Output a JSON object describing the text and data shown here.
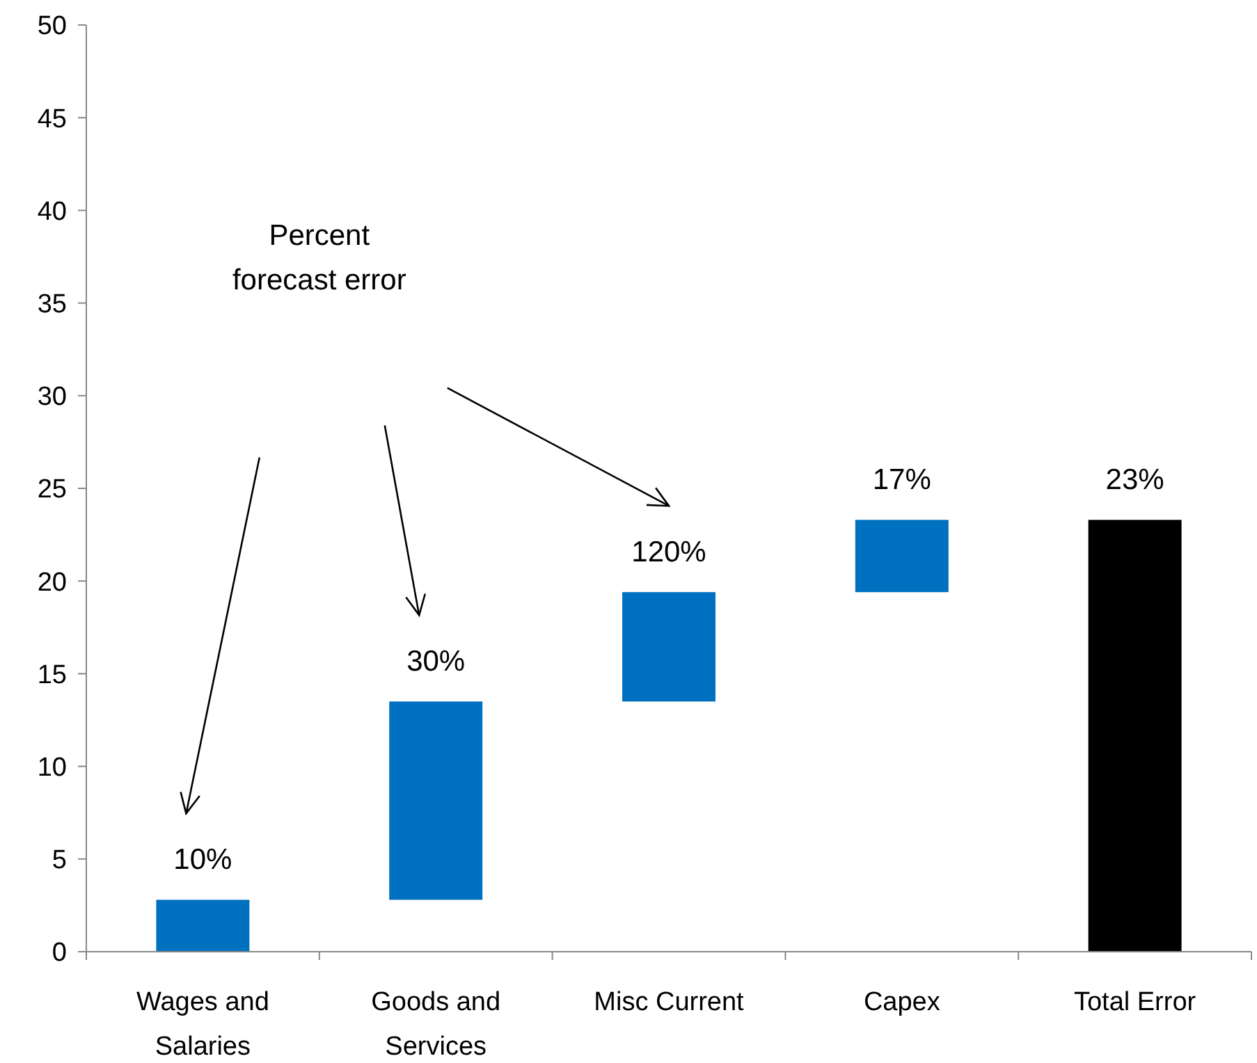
{
  "chart_data": {
    "type": "bar",
    "categories": [
      "Wages and Salaries",
      "Goods and Services",
      "Misc Current",
      "Capex",
      "Total Error"
    ],
    "values": [
      2.8,
      10.7,
      5.9,
      3.9,
      23.3
    ],
    "base": [
      0,
      2.8,
      13.5,
      19.4,
      0
    ],
    "colors": [
      "#0070c0",
      "#0070c0",
      "#0070c0",
      "#0070c0",
      "#000000"
    ],
    "ylim": [
      0,
      50
    ],
    "yticks": [
      0,
      5,
      10,
      15,
      20,
      25,
      30,
      35,
      40,
      45,
      50
    ],
    "grid": false,
    "annotations": [
      "Percent forecast error",
      {
        "text": "10%",
        "x": "Wages and Salaries",
        "y": 2.8
      },
      {
        "text": "30%",
        "x": "Goods and Services",
        "y": 13.5
      },
      {
        "text": "120%",
        "x": "Misc Current",
        "y": 19.4
      },
      {
        "text": "17%",
        "x": "Capex",
        "y": 23.3
      },
      {
        "text": "23%",
        "x": "Total Error",
        "y": 23.3
      }
    ]
  }
}
